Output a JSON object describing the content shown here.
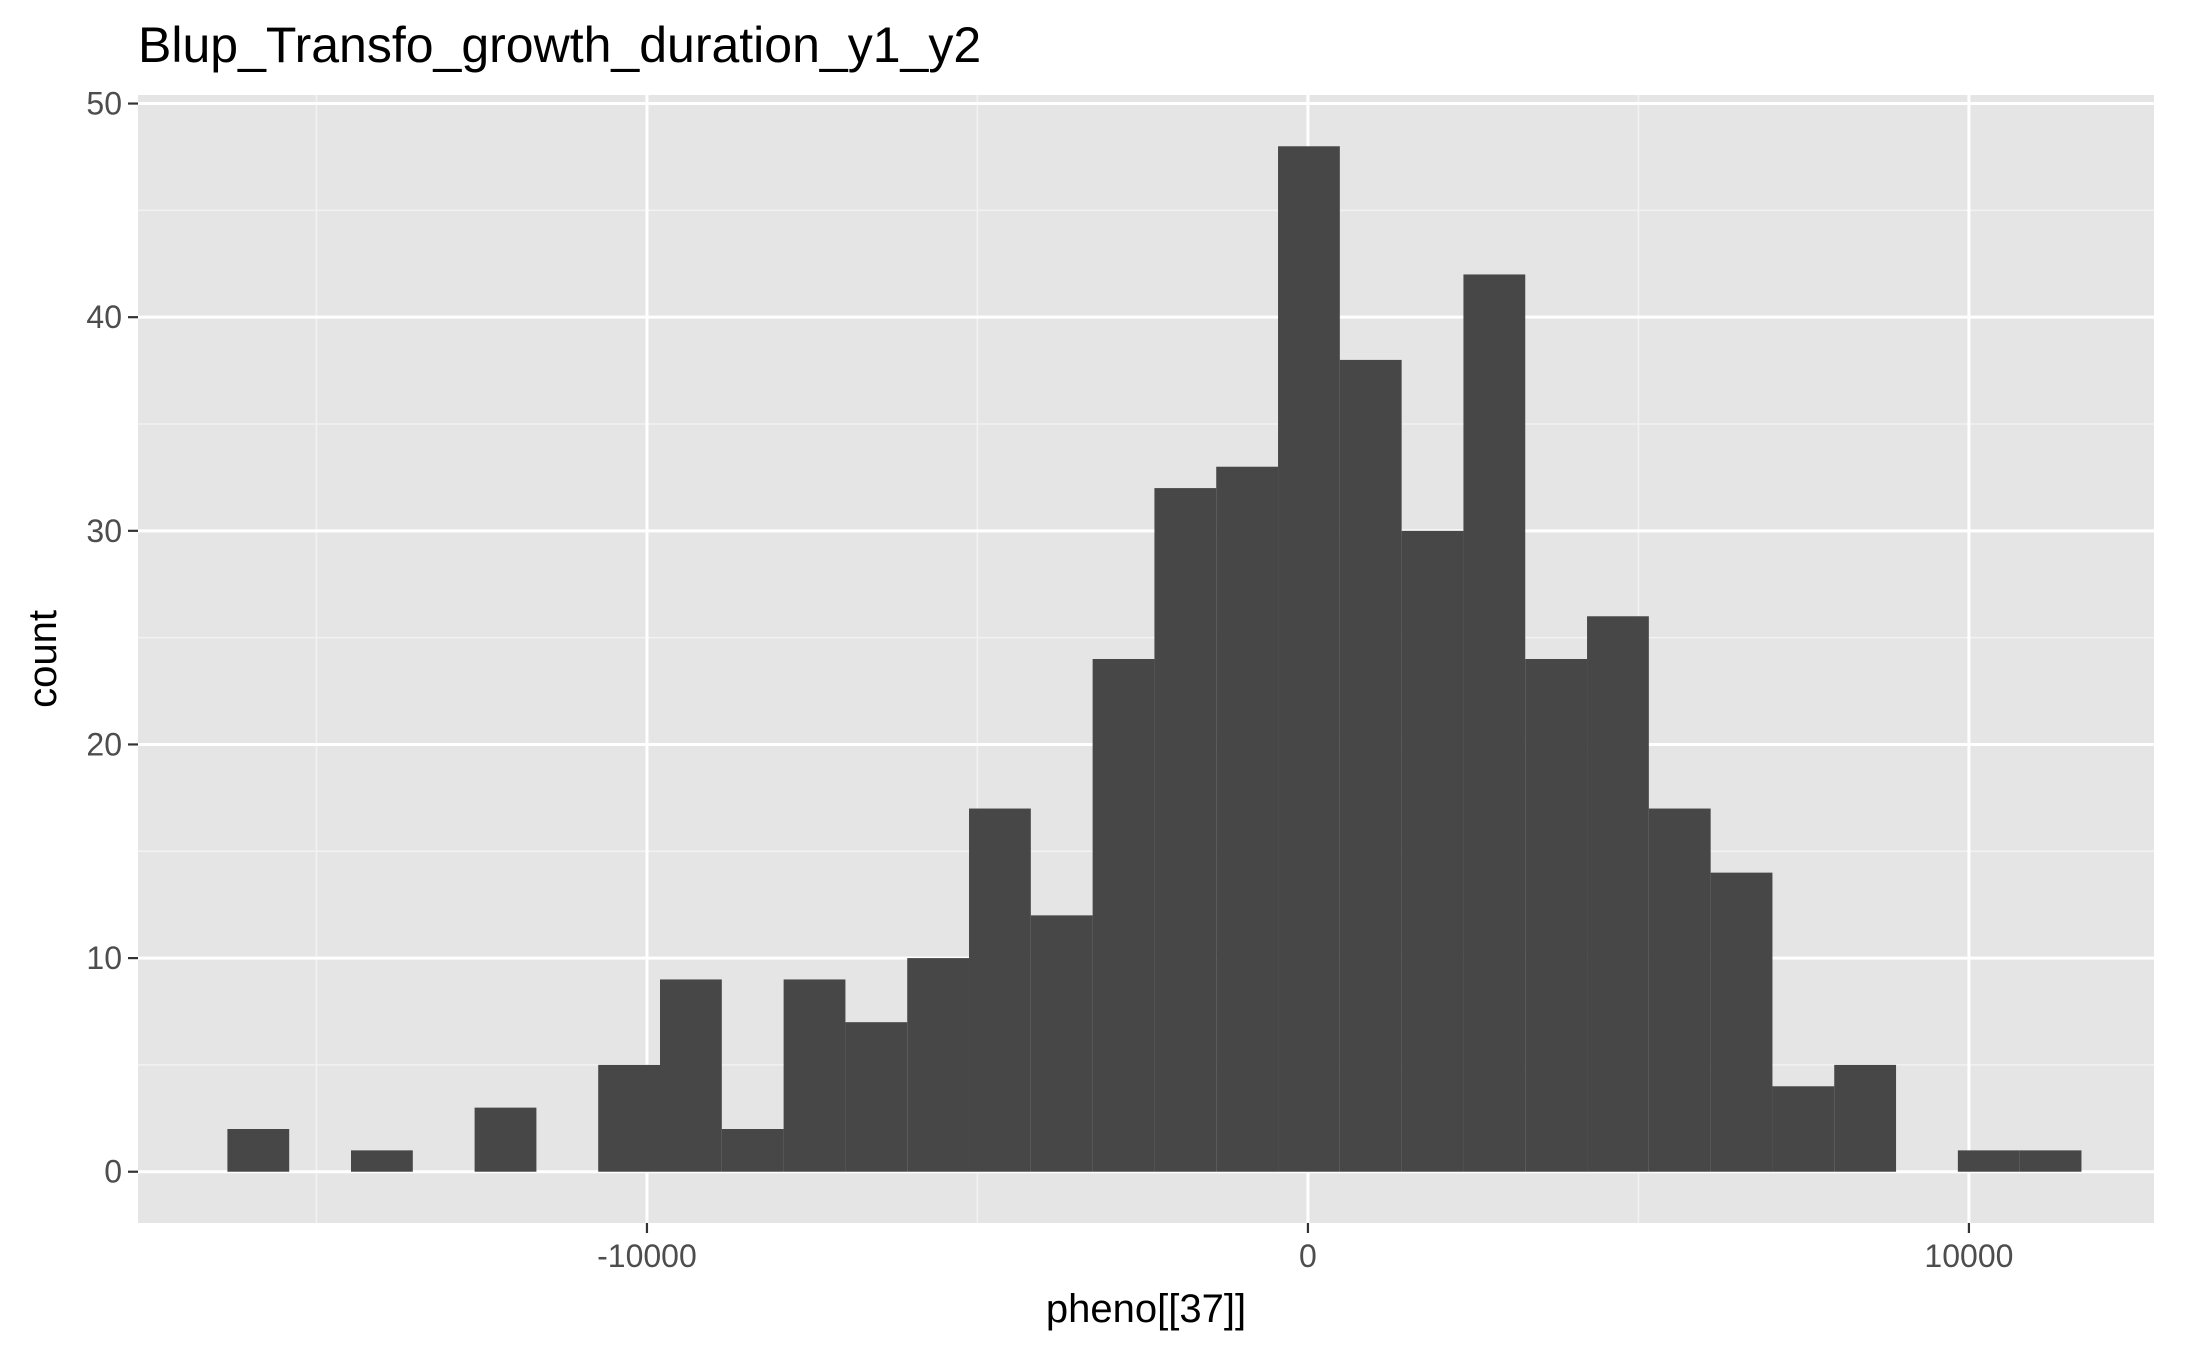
{
  "chart_data": {
    "type": "bar",
    "title": "Blup_Transfo_growth_duration_y1_y2",
    "xlabel": "pheno[[37]]",
    "ylabel": "count",
    "xlim": [
      -17700,
      12800
    ],
    "ylim": [
      -2.4,
      50.4
    ],
    "x_ticks": [
      -10000,
      0,
      10000
    ],
    "x_tick_labels": [
      "-10000",
      "0",
      "10000"
    ],
    "y_ticks": [
      0,
      10,
      20,
      30,
      40,
      50
    ],
    "y_tick_labels": [
      "0",
      "10",
      "20",
      "30",
      "40",
      "50"
    ],
    "x_minor_ticks": [
      -15000,
      -5000,
      5000
    ],
    "y_minor_ticks": [
      5,
      15,
      25,
      35,
      45
    ],
    "grid": true,
    "bin_width": 935,
    "bin_centers": [
      -15880,
      -14945,
      -14010,
      -13075,
      -12140,
      -11205,
      -10270,
      -9335,
      -8400,
      -7465,
      -6530,
      -5595,
      -4660,
      -3725,
      -2790,
      -1855,
      -920,
      15,
      950,
      1885,
      2820,
      3755,
      4690,
      5625,
      6560,
      7495,
      8430,
      9365,
      10300,
      11235
    ],
    "values": [
      2,
      0,
      1,
      0,
      3,
      0,
      5,
      9,
      2,
      9,
      7,
      10,
      17,
      12,
      24,
      32,
      33,
      48,
      38,
      30,
      42,
      24,
      26,
      17,
      14,
      4,
      5,
      0,
      1,
      1
    ],
    "colors": {
      "bar": "#474747",
      "panel": "#e5e5e5",
      "grid_major": "#ffffff",
      "grid_minor": "#f2f2f2",
      "tick": "#333333",
      "tick_label": "#4d4d4d"
    }
  }
}
